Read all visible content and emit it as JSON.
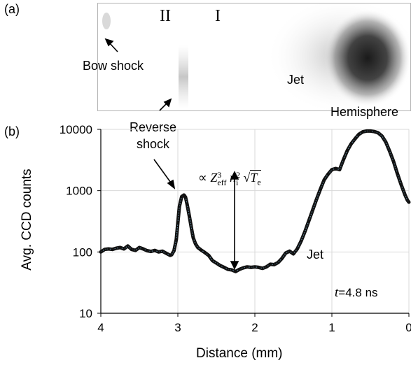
{
  "labels": {
    "panel_a": "(a)",
    "panel_b": "(b)",
    "region_II": "II",
    "region_I": "I",
    "bow_shock": "Bow shock",
    "jet_image": "Jet",
    "hemisphere": "Hemisphere",
    "reverse_shock_line1": "Reverse",
    "reverse_shock_line2": "shock",
    "jet_curve": "Jet",
    "formula_prefix": "∝",
    "formula_Z": "Z",
    "formula_Z_sup": "3",
    "formula_Z_sub": "eff",
    "formula_n": "n",
    "formula_n_sup": "2",
    "formula_n_sub": "i",
    "formula_T": "T",
    "formula_T_sub": "e",
    "time_t": "t",
    "time_value": "=4.8  ns"
  },
  "colors": {
    "curve": "#111111",
    "curve_core": "#5b7f94",
    "grid": "#d9d9d9",
    "frame": "#7f7f7f"
  },
  "chart_data": {
    "type": "line",
    "xlabel": "Distance (mm)",
    "ylabel": "Avg. CCD counts",
    "xlim": [
      4,
      0
    ],
    "ylim": [
      10,
      10000
    ],
    "yscale": "log",
    "x_ticks": [
      4,
      3,
      2,
      1,
      0
    ],
    "y_ticks": [
      10,
      100,
      1000,
      10000
    ],
    "x_tick_labels": [
      "4",
      "3",
      "2",
      "1",
      "0"
    ],
    "y_tick_labels": [
      "10",
      "100",
      "1000",
      "10000"
    ],
    "grid": true,
    "series": [
      {
        "x": [
          4.0,
          3.95,
          3.9,
          3.85,
          3.8,
          3.75,
          3.7,
          3.65,
          3.6,
          3.55,
          3.5,
          3.45,
          3.4,
          3.35,
          3.3,
          3.25,
          3.2,
          3.15,
          3.1,
          3.08,
          3.05,
          3.02,
          3.0,
          2.98,
          2.95,
          2.92,
          2.9,
          2.88,
          2.85,
          2.82,
          2.8,
          2.77,
          2.74,
          2.7,
          2.65,
          2.6,
          2.55,
          2.5,
          2.45,
          2.4,
          2.35,
          2.3,
          2.25,
          2.2,
          2.15,
          2.1,
          2.05,
          2.0,
          1.95,
          1.9,
          1.85,
          1.8,
          1.75,
          1.7,
          1.65,
          1.6,
          1.55,
          1.5,
          1.45,
          1.4,
          1.35,
          1.3,
          1.25,
          1.2,
          1.15,
          1.1,
          1.05,
          1.0,
          0.95,
          0.9,
          0.85,
          0.8,
          0.75,
          0.7,
          0.65,
          0.6,
          0.55,
          0.5,
          0.45,
          0.4,
          0.35,
          0.3,
          0.25,
          0.2,
          0.15,
          0.1,
          0.05,
          0.02,
          0.0
        ],
        "y": [
          100,
          110,
          112,
          110,
          115,
          118,
          112,
          125,
          110,
          106,
          118,
          112,
          105,
          102,
          106,
          100,
          103,
          95,
          88,
          90,
          105,
          160,
          300,
          550,
          800,
          850,
          780,
          600,
          380,
          230,
          170,
          135,
          118,
          108,
          98,
          88,
          72,
          66,
          60,
          56,
          52,
          51,
          48,
          52,
          55,
          57,
          56,
          57,
          56,
          54,
          57,
          63,
          62,
          67,
          78,
          96,
          103,
          93,
          112,
          150,
          215,
          320,
          480,
          720,
          1050,
          1500,
          1850,
          2200,
          2300,
          2200,
          3200,
          4500,
          5800,
          7000,
          8300,
          9100,
          9400,
          9400,
          9200,
          8800,
          7800,
          6200,
          4400,
          3000,
          1900,
          1250,
          850,
          700,
          650
        ]
      }
    ]
  }
}
